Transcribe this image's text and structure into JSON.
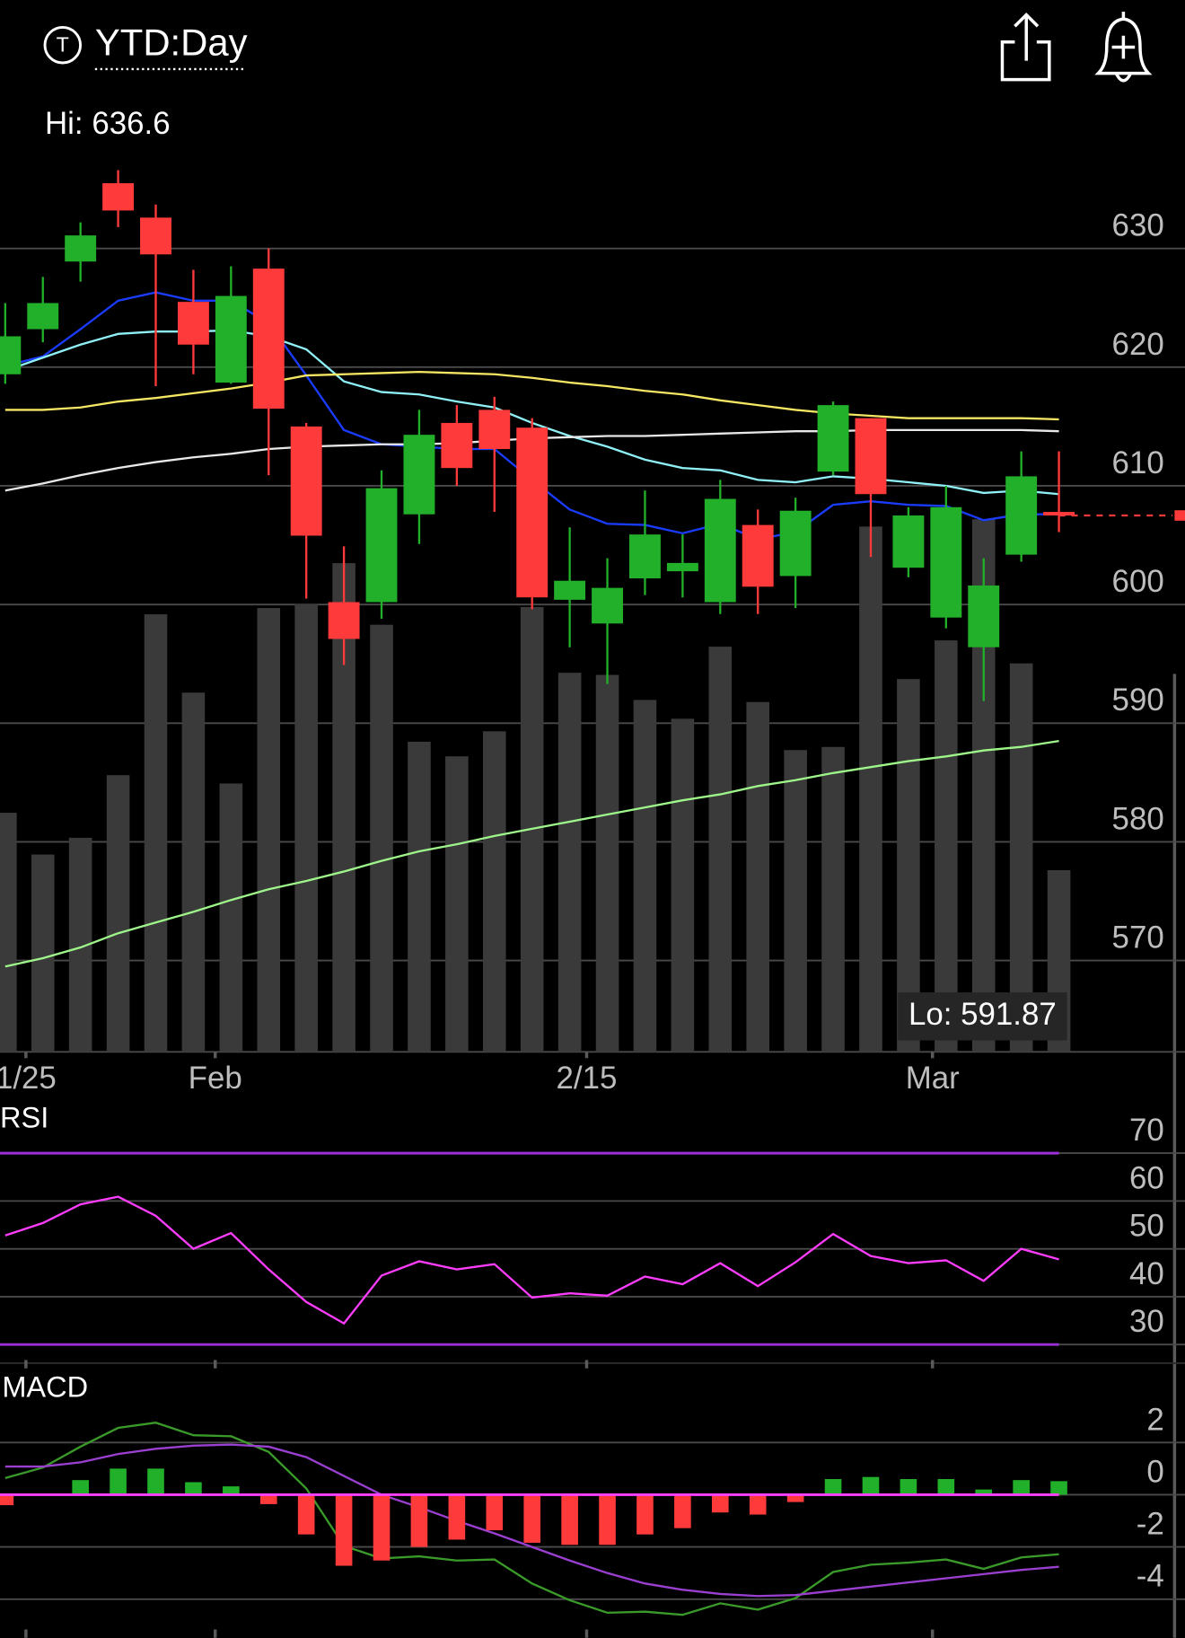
{
  "header": {
    "icon_letter": "T",
    "title": "YTD:Day"
  },
  "chart_data": [
    {
      "type": "candlestick",
      "hi_label": "Hi: 636.6",
      "lo_label": "Lo: 591.87",
      "xlim": [
        -0.139,
        31.35
      ],
      "xticks": [
        {
          "value": 0.55,
          "label": "1/25"
        },
        {
          "value": 5.58,
          "label": "Feb"
        },
        {
          "value": 15.45,
          "label": "2/15"
        },
        {
          "value": 24.64,
          "label": "Mar"
        }
      ],
      "ylim": [
        562.3,
        638.6
      ],
      "yticks": [
        570,
        580,
        590,
        600,
        610,
        620,
        630
      ],
      "up_color": "#22b02a",
      "down_color": "#ff3a3a",
      "open": [
        619.4,
        623.2,
        628.9,
        635.5,
        632.6,
        625.5,
        618.7,
        628.3,
        615.0,
        600.2,
        600.2,
        607.6,
        615.3,
        616.4,
        614.9,
        600.4,
        598.4,
        602.2,
        602.8,
        600.2,
        606.7,
        602.4,
        611.2,
        615.7,
        603.1,
        598.9,
        596.4,
        604.2,
        607.8
      ],
      "high": [
        625.4,
        627.6,
        632.2,
        636.6,
        633.7,
        628.2,
        628.5,
        630.0,
        615.3,
        604.9,
        611.3,
        616.4,
        616.8,
        617.5,
        615.7,
        606.5,
        603.9,
        609.6,
        605.9,
        610.5,
        608.0,
        609.0,
        617.1,
        615.7,
        608.2,
        610.0,
        603.9,
        612.9,
        612.9
      ],
      "low": [
        618.6,
        622.1,
        627.2,
        631.8,
        618.4,
        619.4,
        618.6,
        610.9,
        600.5,
        594.9,
        598.8,
        605.1,
        610.0,
        607.8,
        599.6,
        596.4,
        593.3,
        600.8,
        600.6,
        599.2,
        599.2,
        599.7,
        610.9,
        604.0,
        602.3,
        598.0,
        591.87,
        603.6,
        606.1
      ],
      "close": [
        622.6,
        625.4,
        631.1,
        633.2,
        629.5,
        621.9,
        626.0,
        616.5,
        605.8,
        597.1,
        609.8,
        614.3,
        611.5,
        613.1,
        600.6,
        602.0,
        601.4,
        605.9,
        603.5,
        608.9,
        601.5,
        607.9,
        616.8,
        609.3,
        607.5,
        608.2,
        601.6,
        610.8,
        607.5
      ],
      "volume": [
        229,
        189,
        205,
        265,
        419,
        344,
        257,
        425,
        429,
        468,
        409,
        297,
        283,
        307,
        426,
        363,
        361,
        337,
        319,
        388,
        335,
        289,
        292,
        503,
        357,
        394,
        510,
        372,
        174
      ],
      "volume_ylim": [
        0,
        867
      ],
      "volume_color": "#3a3a3a",
      "series": [
        {
          "color": "#1a3cff",
          "values": [
            620.1,
            620.9,
            623.2,
            625.6,
            626.3,
            625.6,
            625.6,
            623.7,
            619.3,
            614.7,
            613.5,
            613.3,
            613.1,
            613.1,
            610.5,
            608.0,
            606.8,
            606.7,
            606.0,
            606.8,
            605.5,
            606.1,
            608.4,
            608.7,
            608.4,
            608.3,
            607.1,
            607.6,
            607.6
          ]
        },
        {
          "color": "#8ff0f5",
          "values": [
            619.7,
            620.8,
            621.9,
            622.8,
            623.0,
            623.0,
            623.1,
            622.6,
            621.5,
            618.8,
            617.9,
            617.7,
            617.1,
            616.6,
            615.3,
            614.2,
            613.3,
            612.2,
            611.5,
            611.3,
            610.5,
            610.3,
            610.8,
            610.6,
            610.3,
            610.0,
            609.4,
            609.6,
            609.3
          ]
        },
        {
          "color": "#f5e663",
          "values": [
            616.4,
            616.4,
            616.6,
            617.1,
            617.4,
            617.8,
            618.2,
            618.7,
            619.3,
            619.4,
            619.5,
            619.6,
            619.5,
            619.4,
            619.1,
            618.7,
            618.4,
            618.0,
            617.7,
            617.2,
            616.8,
            616.4,
            616.1,
            615.9,
            615.7,
            615.7,
            615.7,
            615.7,
            615.6
          ]
        },
        {
          "color": "#e8e8e8",
          "values": [
            609.6,
            610.2,
            610.9,
            611.5,
            612.0,
            612.4,
            612.7,
            613.1,
            613.3,
            613.4,
            613.5,
            613.5,
            613.6,
            613.8,
            614.0,
            614.1,
            614.2,
            614.2,
            614.3,
            614.4,
            614.5,
            614.6,
            614.6,
            614.7,
            614.7,
            614.7,
            614.7,
            614.7,
            614.6
          ]
        },
        {
          "color": "#9ef58a",
          "values": [
            569.5,
            570.2,
            571.1,
            572.3,
            573.2,
            574.1,
            575.1,
            576.0,
            576.7,
            577.5,
            578.4,
            579.2,
            579.8,
            580.5,
            581.1,
            581.7,
            582.3,
            582.9,
            583.5,
            584.0,
            584.7,
            585.2,
            585.8,
            586.3,
            586.8,
            587.2,
            587.7,
            588.0,
            588.5
          ]
        }
      ]
    },
    {
      "type": "rsi",
      "title": "RSI",
      "ylim": [
        26.1,
        79.6
      ],
      "yticks": [
        30,
        40,
        50,
        60,
        70
      ],
      "reference_lines": [
        70,
        30
      ],
      "reference_color": "#9b30d9",
      "color": "#ff3dff",
      "values": [
        52.8,
        55.4,
        59.3,
        60.9,
        56.9,
        50.0,
        53.3,
        45.7,
        38.9,
        34.4,
        44.4,
        47.4,
        45.7,
        46.8,
        39.8,
        40.7,
        40.2,
        44.2,
        42.6,
        47.0,
        42.2,
        47.2,
        53.1,
        48.5,
        47.0,
        47.6,
        43.3,
        50.0,
        47.8
      ]
    },
    {
      "type": "macd",
      "title": "MACD",
      "ylim": [
        -5.48,
        4.64
      ],
      "yticks": [
        -4,
        -2,
        0,
        2
      ],
      "zero_color": "#ff40ff",
      "up_color": "#22b02a",
      "down_color": "#ff3a3a",
      "histogram": [
        -0.4,
        0.0,
        0.56,
        1.0,
        1.0,
        0.48,
        0.32,
        -0.36,
        -1.52,
        -2.72,
        -2.52,
        -2.0,
        -1.72,
        -1.36,
        -1.84,
        -1.92,
        -1.92,
        -1.52,
        -1.28,
        -0.68,
        -0.76,
        -0.28,
        0.6,
        0.68,
        0.6,
        0.6,
        0.2,
        0.56,
        0.52
      ],
      "series": [
        {
          "color": "#3a9a2a",
          "values": [
            0.64,
            1.04,
            1.84,
            2.56,
            2.76,
            2.28,
            2.24,
            1.64,
            0.24,
            -1.96,
            -2.44,
            -2.36,
            -2.52,
            -2.48,
            -3.4,
            -4.04,
            -4.52,
            -4.48,
            -4.6,
            -4.16,
            -4.4,
            -3.96,
            -2.96,
            -2.68,
            -2.6,
            -2.48,
            -2.84,
            -2.4,
            -2.28
          ]
        },
        {
          "color": "#9b3fd0",
          "values": [
            1.08,
            1.08,
            1.24,
            1.56,
            1.76,
            1.88,
            1.92,
            1.84,
            1.44,
            0.72,
            0.0,
            -0.48,
            -1.0,
            -1.48,
            -2.0,
            -2.52,
            -3.0,
            -3.4,
            -3.64,
            -3.8,
            -3.88,
            -3.84,
            -3.68,
            -3.52,
            -3.36,
            -3.2,
            -3.04,
            -2.88,
            -2.76
          ]
        }
      ]
    }
  ]
}
